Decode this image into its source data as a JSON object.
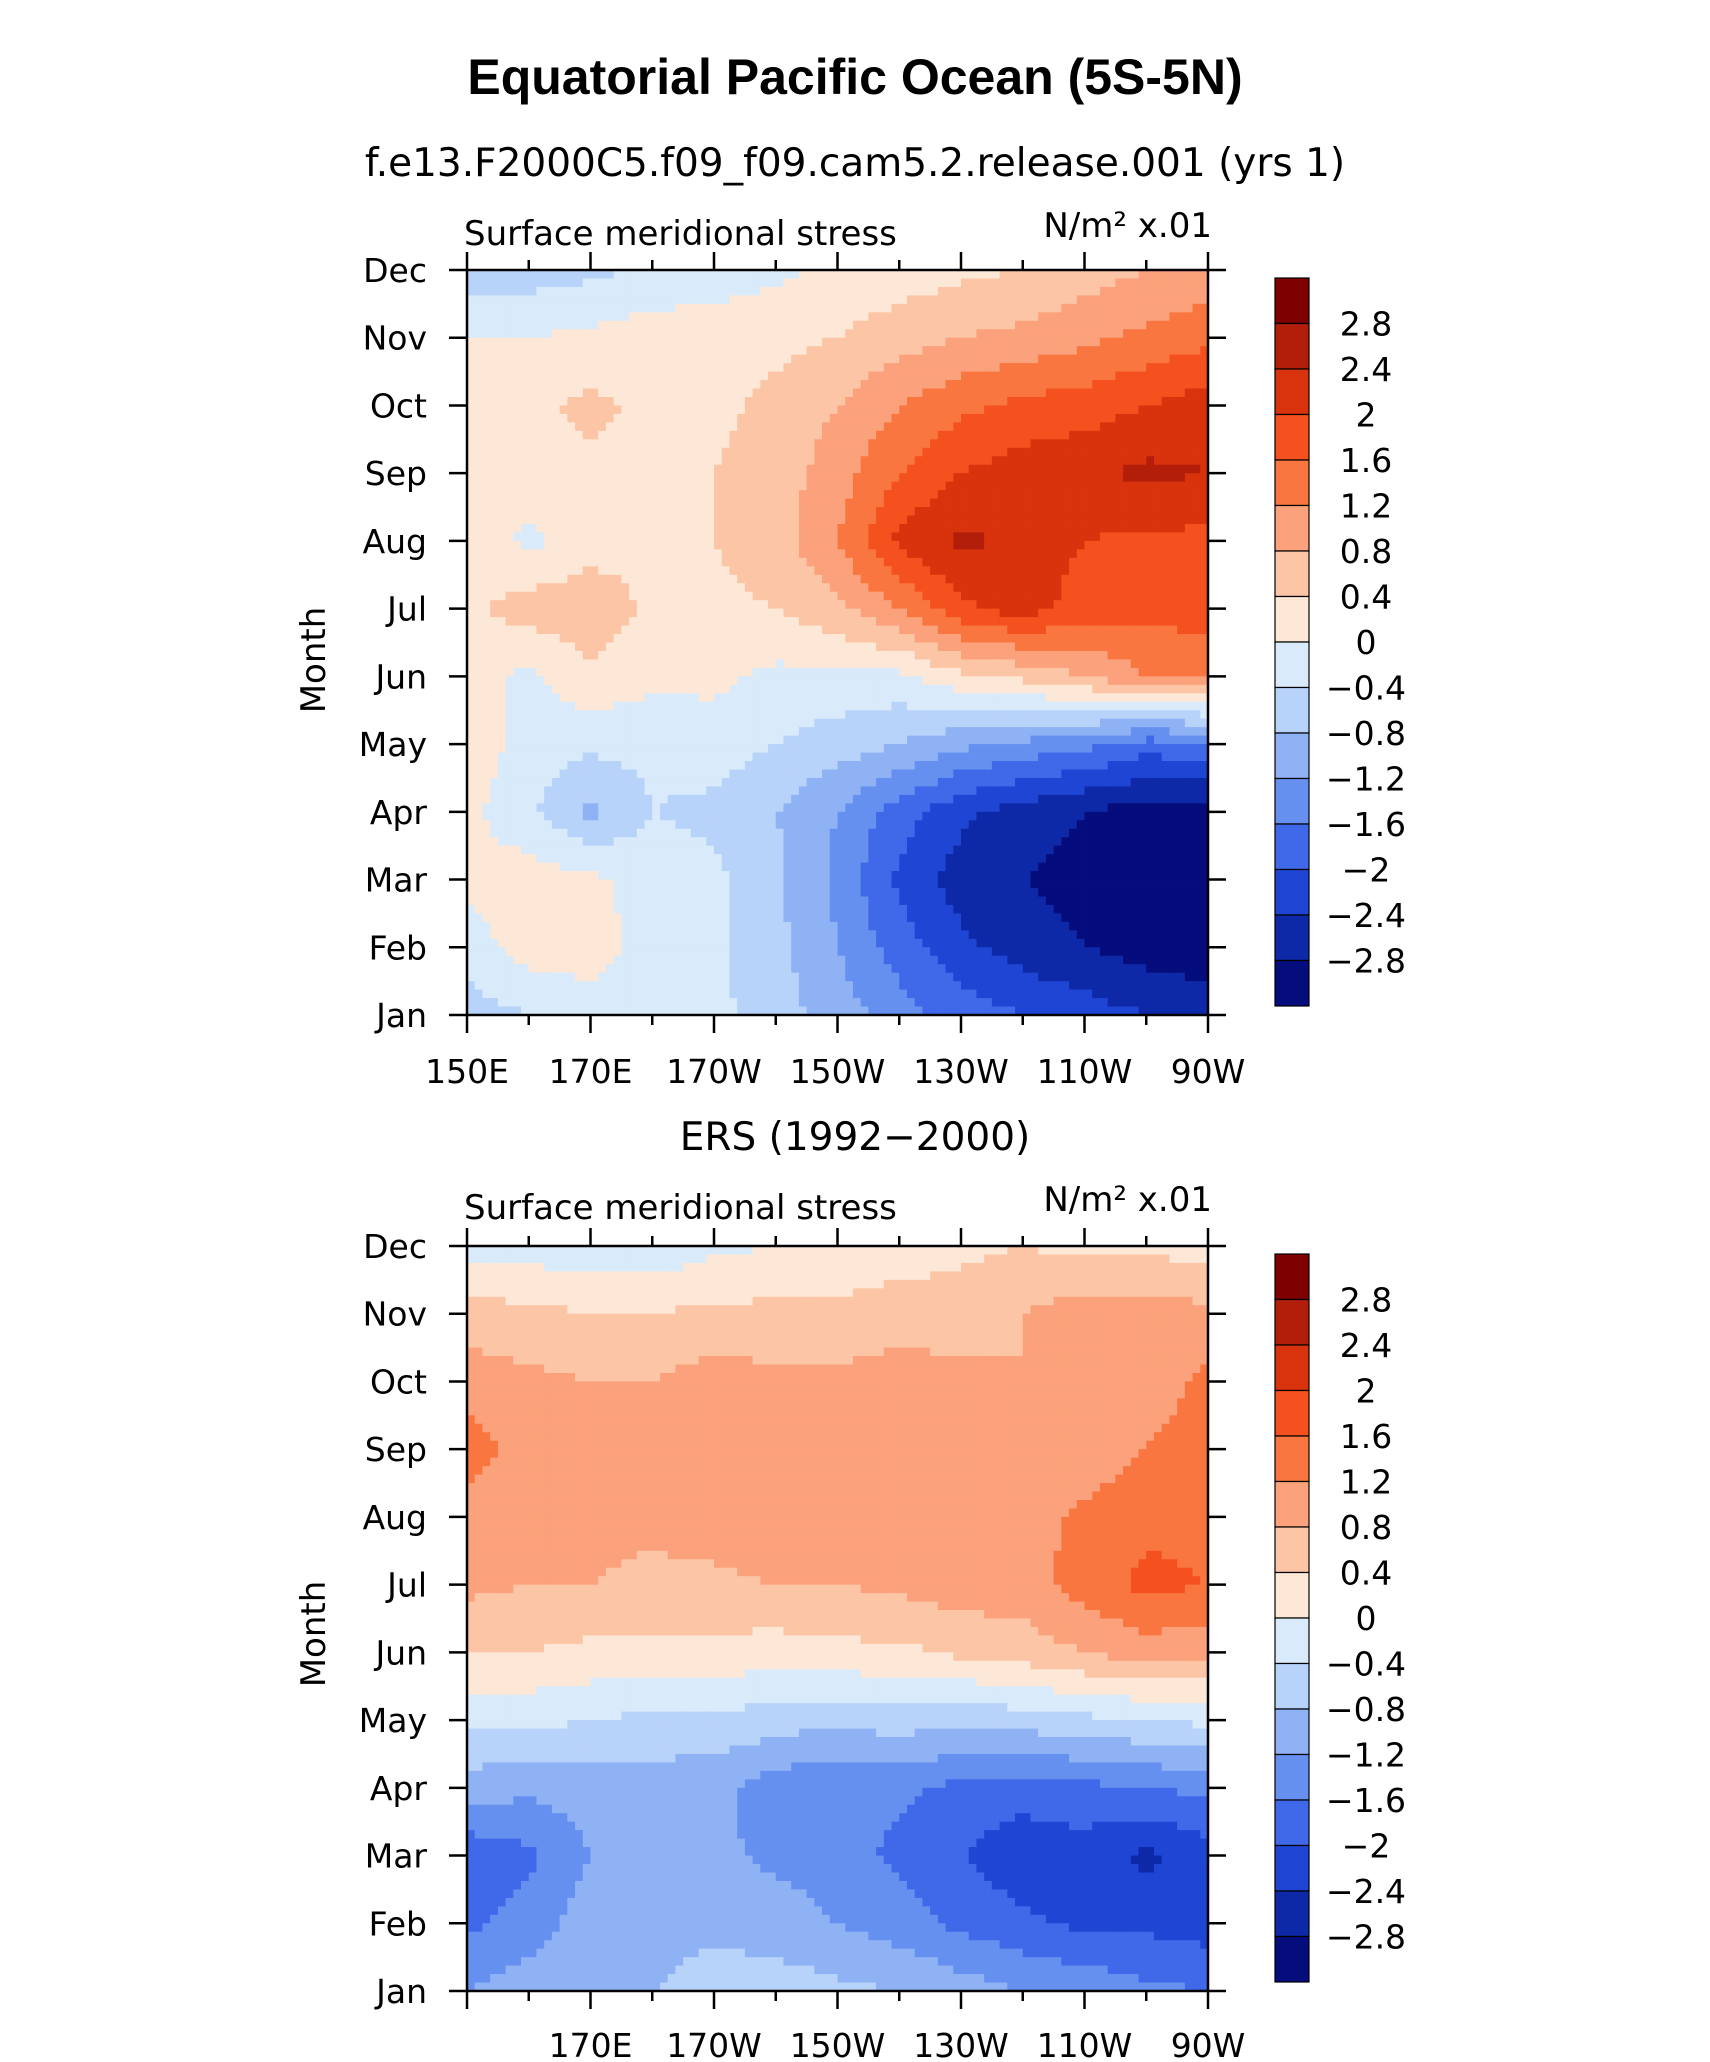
{
  "title": "Equatorial Pacific Ocean (5S-5N)",
  "colorbar": {
    "labels": [
      "2.8",
      "2.4",
      "2",
      "1.6",
      "1.2",
      "0.8",
      "0.4",
      "0",
      "−0.4",
      "−0.8",
      "−1.2",
      "−1.6",
      "−2",
      "−2.4",
      "−2.8"
    ],
    "colors": [
      "#7f0000",
      "#b21e0a",
      "#d8330d",
      "#f4511e",
      "#f97641",
      "#fba17b",
      "#fcc6a6",
      "#fde8d8",
      "#d9eafa",
      "#b8d3f9",
      "#8eb2f4",
      "#6690ef",
      "#3f69e8",
      "#1e45d4",
      "#0e29a8",
      "#050c7c"
    ]
  },
  "chart_data": [
    {
      "type": "heatmap",
      "subtitle": "f.e13.F2000C5.f09_f09.cam5.2.release.001 (yrs 1)",
      "left_label": "Surface meridional stress",
      "right_label": "N/m² x.01",
      "xlabel": "",
      "ylabel": "Month",
      "x_ticklabels": [
        "150E",
        "170E",
        "170W",
        "150W",
        "130W",
        "110W",
        "90W"
      ],
      "y_ticklabels": [
        "Jan",
        "Feb",
        "Mar",
        "Apr",
        "May",
        "Jun",
        "Jul",
        "Aug",
        "Sep",
        "Oct",
        "Nov",
        "Dec"
      ],
      "x_lon_range": [
        150,
        270
      ],
      "levels": [
        -2.8,
        -2.4,
        -2,
        -1.6,
        -1.2,
        -0.8,
        -0.4,
        0,
        0.4,
        0.8,
        1.2,
        1.6,
        2,
        2.4,
        2.8
      ],
      "x": [
        150,
        160,
        170,
        180,
        190,
        200,
        210,
        220,
        230,
        240,
        250,
        260,
        270
      ],
      "values": [
        [
          -0.6,
          -0.4,
          -0.2,
          -0.2,
          -0.3,
          -0.6,
          -1.0,
          -1.4,
          -1.8,
          -2.0,
          -2.2,
          -2.4,
          -2.5
        ],
        [
          -0.2,
          0.2,
          0.2,
          -0.2,
          -0.3,
          -0.7,
          -1.2,
          -1.8,
          -2.3,
          -2.6,
          -2.8,
          -3.0,
          -3.1
        ],
        [
          0.1,
          0.2,
          0.1,
          -0.2,
          -0.3,
          -0.7,
          -1.3,
          -2.1,
          -2.6,
          -2.8,
          -3.0,
          -3.2,
          -3.2
        ],
        [
          0.1,
          -0.3,
          -0.9,
          -0.4,
          -0.5,
          -0.8,
          -1.2,
          -1.8,
          -2.3,
          -2.6,
          -2.8,
          -3.0,
          -3.0
        ],
        [
          0.3,
          -0.2,
          -0.3,
          -0.3,
          -0.2,
          -0.4,
          -0.6,
          -0.8,
          -1.1,
          -1.3,
          -1.5,
          -1.8,
          -1.7
        ],
        [
          0.2,
          -0.1,
          0.3,
          0.1,
          0.1,
          -0.1,
          -0.1,
          -0.1,
          0.3,
          0.5,
          0.8,
          1.2,
          1.3
        ],
        [
          0.3,
          0.6,
          0.7,
          0.3,
          0.3,
          0.4,
          0.7,
          1.2,
          1.9,
          2.2,
          1.8,
          1.7,
          1.8
        ],
        [
          0.3,
          -0.1,
          0.2,
          0.3,
          0.4,
          0.6,
          1.2,
          2.1,
          2.5,
          2.3,
          2.0,
          1.9,
          1.9
        ],
        [
          0.4,
          0.3,
          0.3,
          0.3,
          0.4,
          0.6,
          1.0,
          1.6,
          2.0,
          2.2,
          2.3,
          2.5,
          2.4
        ],
        [
          0.3,
          0.3,
          0.5,
          0.3,
          0.3,
          0.5,
          0.8,
          1.2,
          1.5,
          1.7,
          1.8,
          2.0,
          2.2
        ],
        [
          0.0,
          0.0,
          0.1,
          0.2,
          0.2,
          0.3,
          0.4,
          0.6,
          0.8,
          0.9,
          1.1,
          1.3,
          1.5
        ],
        [
          -0.6,
          -0.6,
          -0.5,
          -0.3,
          -0.2,
          -0.1,
          0.1,
          0.2,
          0.3,
          0.4,
          0.6,
          0.8,
          0.9
        ]
      ]
    },
    {
      "type": "heatmap",
      "subtitle": "ERS (1992−2000)",
      "left_label": "Surface meridional stress",
      "right_label": "N/m² x.01",
      "xlabel": "",
      "ylabel": "Month",
      "x_ticklabels": [
        "170E",
        "170W",
        "150W",
        "130W",
        "110W",
        "90W"
      ],
      "y_ticklabels": [
        "Jan",
        "Feb",
        "Mar",
        "Apr",
        "May",
        "Jun",
        "Jul",
        "Aug",
        "Sep",
        "Oct",
        "Nov",
        "Dec"
      ],
      "x_lon_range": [
        150,
        270
      ],
      "levels": [
        -2.8,
        -2.4,
        -2,
        -1.6,
        -1.2,
        -0.8,
        -0.4,
        0,
        0.4,
        0.8,
        1.2,
        1.6,
        2,
        2.4,
        2.8
      ],
      "x": [
        150,
        160,
        170,
        180,
        190,
        200,
        210,
        220,
        230,
        240,
        250,
        260,
        270
      ],
      "values": [
        [
          -1.2,
          -1.0,
          -0.9,
          -0.8,
          -0.6,
          -0.6,
          -0.7,
          -0.8,
          -1.0,
          -1.2,
          -1.3,
          -1.5,
          -1.6
        ],
        [
          -1.7,
          -1.4,
          -1.0,
          -1.0,
          -0.9,
          -1.0,
          -1.2,
          -1.4,
          -1.7,
          -1.9,
          -2.1,
          -2.1,
          -2.2
        ],
        [
          -1.9,
          -1.7,
          -1.2,
          -1.0,
          -1.1,
          -1.3,
          -1.4,
          -1.7,
          -2.0,
          -2.3,
          -2.2,
          -2.5,
          -2.2
        ],
        [
          -1.0,
          -1.1,
          -1.0,
          -1.0,
          -1.1,
          -1.4,
          -1.6,
          -1.5,
          -1.7,
          -1.8,
          -1.7,
          -1.6,
          -1.5
        ],
        [
          -0.3,
          -0.3,
          -0.4,
          -0.5,
          -0.5,
          -0.6,
          -0.7,
          -0.6,
          -0.7,
          -0.6,
          -0.5,
          -0.4,
          -0.3
        ],
        [
          0.4,
          0.4,
          0.3,
          0.3,
          0.3,
          0.2,
          0.3,
          0.3,
          0.5,
          0.6,
          0.8,
          1.0,
          0.9
        ],
        [
          0.9,
          0.8,
          0.8,
          0.7,
          0.7,
          0.8,
          0.8,
          0.9,
          1.0,
          1.0,
          1.4,
          1.7,
          1.6
        ],
        [
          1.0,
          0.9,
          0.9,
          0.9,
          1.0,
          1.1,
          1.1,
          1.1,
          1.1,
          1.0,
          1.3,
          1.5,
          1.5
        ],
        [
          1.4,
          1.0,
          0.8,
          1.0,
          1.1,
          1.2,
          1.0,
          1.1,
          1.0,
          0.9,
          0.9,
          1.2,
          1.4
        ],
        [
          1.0,
          0.9,
          0.8,
          0.8,
          1.0,
          0.9,
          0.9,
          1.0,
          0.9,
          0.8,
          0.9,
          1.0,
          1.3
        ],
        [
          0.6,
          0.5,
          0.4,
          0.4,
          0.5,
          0.5,
          0.5,
          0.6,
          0.6,
          0.8,
          1.0,
          1.0,
          0.9
        ],
        [
          -0.2,
          -0.2,
          -0.3,
          -0.3,
          -0.1,
          0.0,
          0.1,
          0.2,
          0.3,
          0.4,
          0.3,
          0.3,
          0.2
        ]
      ]
    }
  ]
}
